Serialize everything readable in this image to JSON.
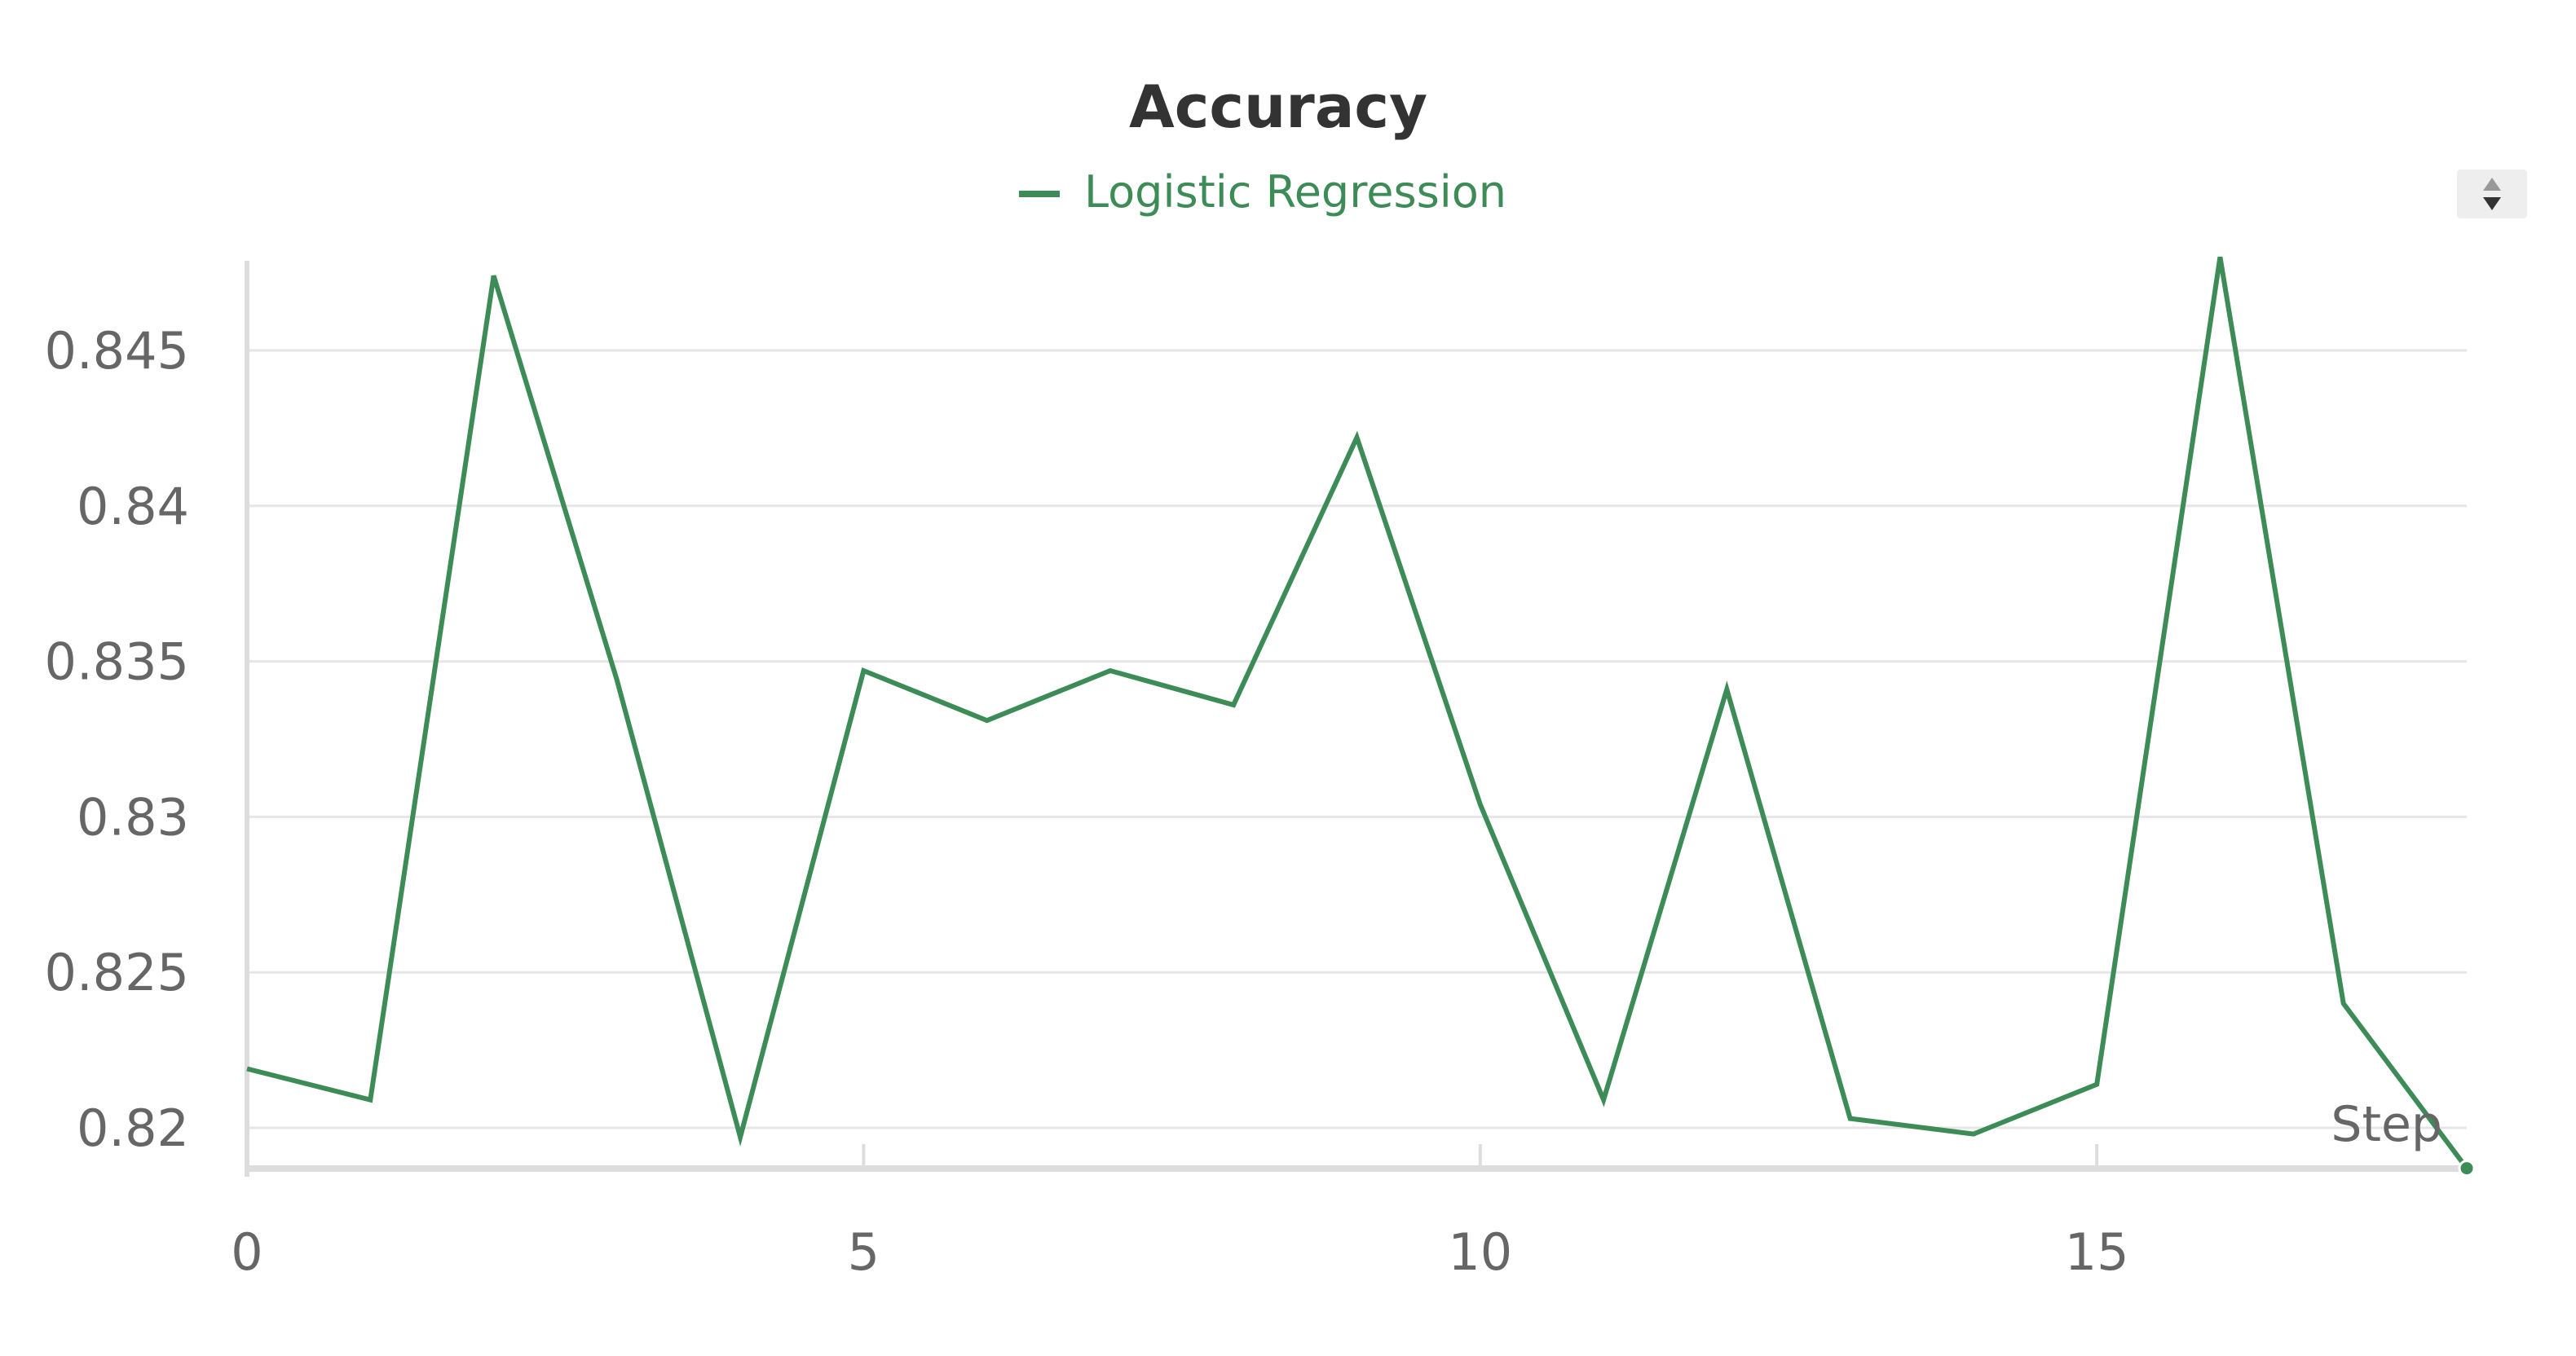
{
  "chart_data": {
    "type": "line",
    "title": "Accuracy",
    "xlabel": "Step",
    "ylabel": "",
    "x": [
      0,
      1,
      2,
      3,
      4,
      5,
      6,
      7,
      8,
      9,
      10,
      11,
      12,
      13,
      14,
      15,
      16,
      17,
      18
    ],
    "series": [
      {
        "name": "Logistic Regression",
        "color": "#3d8c57",
        "values": [
          0.8219,
          0.8209,
          0.8474,
          0.8344,
          0.8197,
          0.8347,
          0.8331,
          0.8347,
          0.8336,
          0.8422,
          0.8304,
          0.8209,
          0.8341,
          0.8203,
          0.8198,
          0.8214,
          0.848,
          0.824,
          0.8187
        ]
      }
    ],
    "xlim": [
      0,
      18
    ],
    "ylim": [
      0.8187,
      0.848
    ],
    "x_ticks": [
      0,
      5,
      10,
      15
    ],
    "x_tick_labels": [
      "0",
      "5",
      "10",
      "15"
    ],
    "y_ticks": [
      0.82,
      0.825,
      0.83,
      0.835,
      0.84,
      0.845
    ],
    "y_tick_labels": [
      "0.82",
      "0.825",
      "0.83",
      "0.835",
      "0.84",
      "0.845"
    ],
    "grid": true,
    "legend_position": "top-center"
  },
  "legend": {
    "scroll_icon": "up-down-arrows-icon"
  }
}
